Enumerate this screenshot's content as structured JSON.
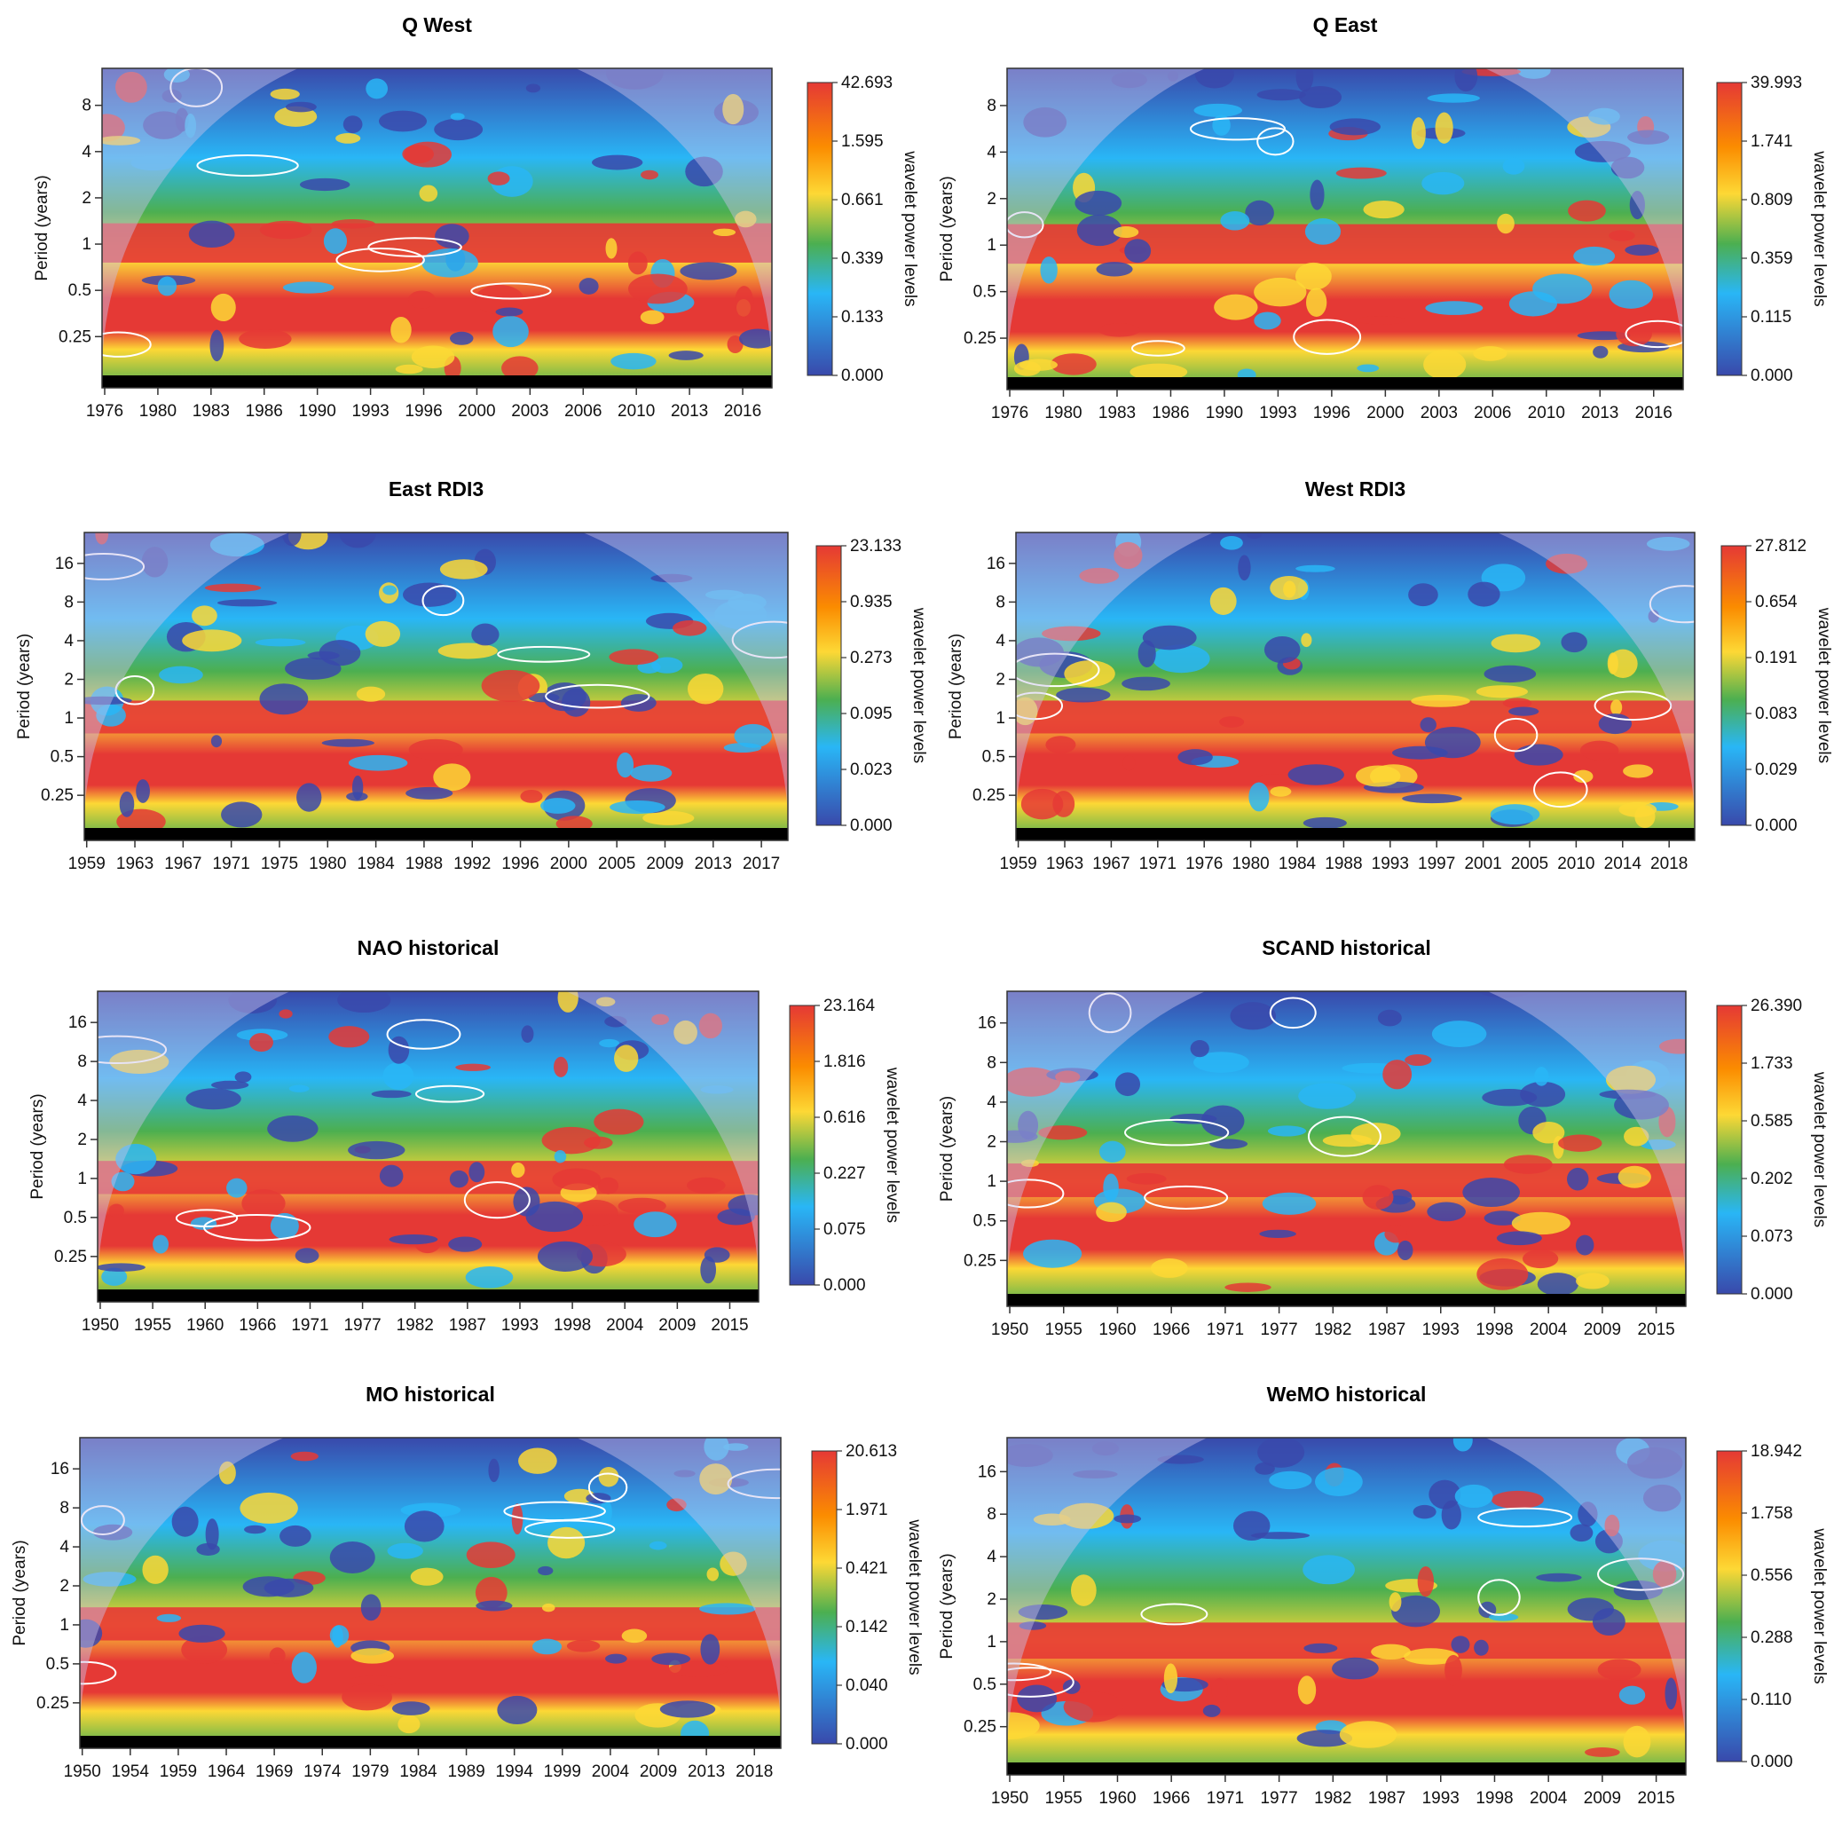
{
  "colors": {
    "low": "#3949ab",
    "mid_low": "#29b6f6",
    "mid": "#4caf50",
    "mid_high": "#fdd835",
    "high": "#e53935",
    "cone_overlay": "#c9c3ea",
    "contour": "#ffffff",
    "significance_bar": "#000000"
  },
  "chart_data": [
    {
      "type": "heatmap",
      "title": "Q West",
      "ylabel": "Period (years)",
      "colorbar_label": "wavelet power levels",
      "colorbar_ticks": [
        "42.693",
        "1.595",
        "0.661",
        "0.339",
        "0.133",
        "0.000"
      ],
      "y_ticks": [
        "8",
        "4",
        "2",
        "1",
        "0.5",
        "0.25"
      ],
      "x_ticks": [
        "1976",
        "1980",
        "1983",
        "1986",
        "1990",
        "1993",
        "1996",
        "2000",
        "2003",
        "2006",
        "2010",
        "2013",
        "2016"
      ],
      "band_period": 1
    },
    {
      "type": "heatmap",
      "title": "Q East",
      "ylabel": "Period (years)",
      "colorbar_label": "wavelet power levels",
      "colorbar_ticks": [
        "39.993",
        "1.741",
        "0.809",
        "0.359",
        "0.115",
        "0.000"
      ],
      "y_ticks": [
        "8",
        "4",
        "2",
        "1",
        "0.5",
        "0.25"
      ],
      "x_ticks": [
        "1976",
        "1980",
        "1983",
        "1986",
        "1990",
        "1993",
        "1996",
        "2000",
        "2003",
        "2006",
        "2010",
        "2013",
        "2016"
      ],
      "band_period": 1
    },
    {
      "type": "heatmap",
      "title": "East RDI3",
      "ylabel": "Period (years)",
      "colorbar_label": "wavelet power levels",
      "colorbar_ticks": [
        "23.133",
        "0.935",
        "0.273",
        "0.095",
        "0.023",
        "0.000"
      ],
      "y_ticks": [
        "16",
        "8",
        "4",
        "2",
        "1",
        "0.5",
        "0.25"
      ],
      "x_ticks": [
        "1959",
        "1963",
        "1967",
        "1971",
        "1975",
        "1980",
        "1984",
        "1988",
        "1992",
        "1996",
        "2000",
        "2005",
        "2009",
        "2013",
        "2017"
      ],
      "band_period": 1
    },
    {
      "type": "heatmap",
      "title": "West RDI3",
      "ylabel": "Period (years)",
      "colorbar_label": "wavelet power levels",
      "colorbar_ticks": [
        "27.812",
        "0.654",
        "0.191",
        "0.083",
        "0.029",
        "0.000"
      ],
      "y_ticks": [
        "16",
        "8",
        "4",
        "2",
        "1",
        "0.5",
        "0.25"
      ],
      "x_ticks": [
        "1959",
        "1963",
        "1967",
        "1971",
        "1976",
        "1980",
        "1984",
        "1988",
        "1993",
        "1997",
        "2001",
        "2005",
        "2010",
        "2014",
        "2018"
      ],
      "band_period": 1
    },
    {
      "type": "heatmap",
      "title": "NAO historical",
      "ylabel": "Period (years)",
      "colorbar_label": "wavelet power levels",
      "colorbar_ticks": [
        "23.164",
        "1.816",
        "0.616",
        "0.227",
        "0.075",
        "0.000"
      ],
      "y_ticks": [
        "16",
        "8",
        "4",
        "2",
        "1",
        "0.5",
        "0.25"
      ],
      "x_ticks": [
        "1950",
        "1955",
        "1960",
        "1966",
        "1971",
        "1977",
        "1982",
        "1987",
        "1993",
        "1998",
        "2004",
        "2009",
        "2015"
      ],
      "band_period": 1
    },
    {
      "type": "heatmap",
      "title": "SCAND historical",
      "ylabel": "Period (years)",
      "colorbar_label": "wavelet power levels",
      "colorbar_ticks": [
        "26.390",
        "1.733",
        "0.585",
        "0.202",
        "0.073",
        "0.000"
      ],
      "y_ticks": [
        "16",
        "8",
        "4",
        "2",
        "1",
        "0.5",
        "0.25"
      ],
      "x_ticks": [
        "1950",
        "1955",
        "1960",
        "1966",
        "1971",
        "1977",
        "1982",
        "1987",
        "1993",
        "1998",
        "2004",
        "2009",
        "2015"
      ],
      "band_period": 1
    },
    {
      "type": "heatmap",
      "title": "MO historical",
      "ylabel": "Period (years)",
      "colorbar_label": "wavelet power levels",
      "colorbar_ticks": [
        "20.613",
        "1.971",
        "0.421",
        "0.142",
        "0.040",
        "0.000"
      ],
      "y_ticks": [
        "16",
        "8",
        "4",
        "2",
        "1",
        "0.5",
        "0.25"
      ],
      "x_ticks": [
        "1950",
        "1954",
        "1959",
        "1964",
        "1969",
        "1974",
        "1979",
        "1984",
        "1989",
        "1994",
        "1999",
        "2004",
        "2009",
        "2013",
        "2018"
      ],
      "band_period": 1
    },
    {
      "type": "heatmap",
      "title": "WeMO historical",
      "ylabel": "Period (years)",
      "colorbar_label": "wavelet power levels",
      "colorbar_ticks": [
        "18.942",
        "1.758",
        "0.556",
        "0.288",
        "0.110",
        "0.000"
      ],
      "y_ticks": [
        "16",
        "8",
        "4",
        "2",
        "1",
        "0.5",
        "0.25"
      ],
      "x_ticks": [
        "1950",
        "1955",
        "1960",
        "1966",
        "1971",
        "1977",
        "1982",
        "1987",
        "1993",
        "1998",
        "2004",
        "2009",
        "2015"
      ],
      "band_period": 1
    }
  ]
}
